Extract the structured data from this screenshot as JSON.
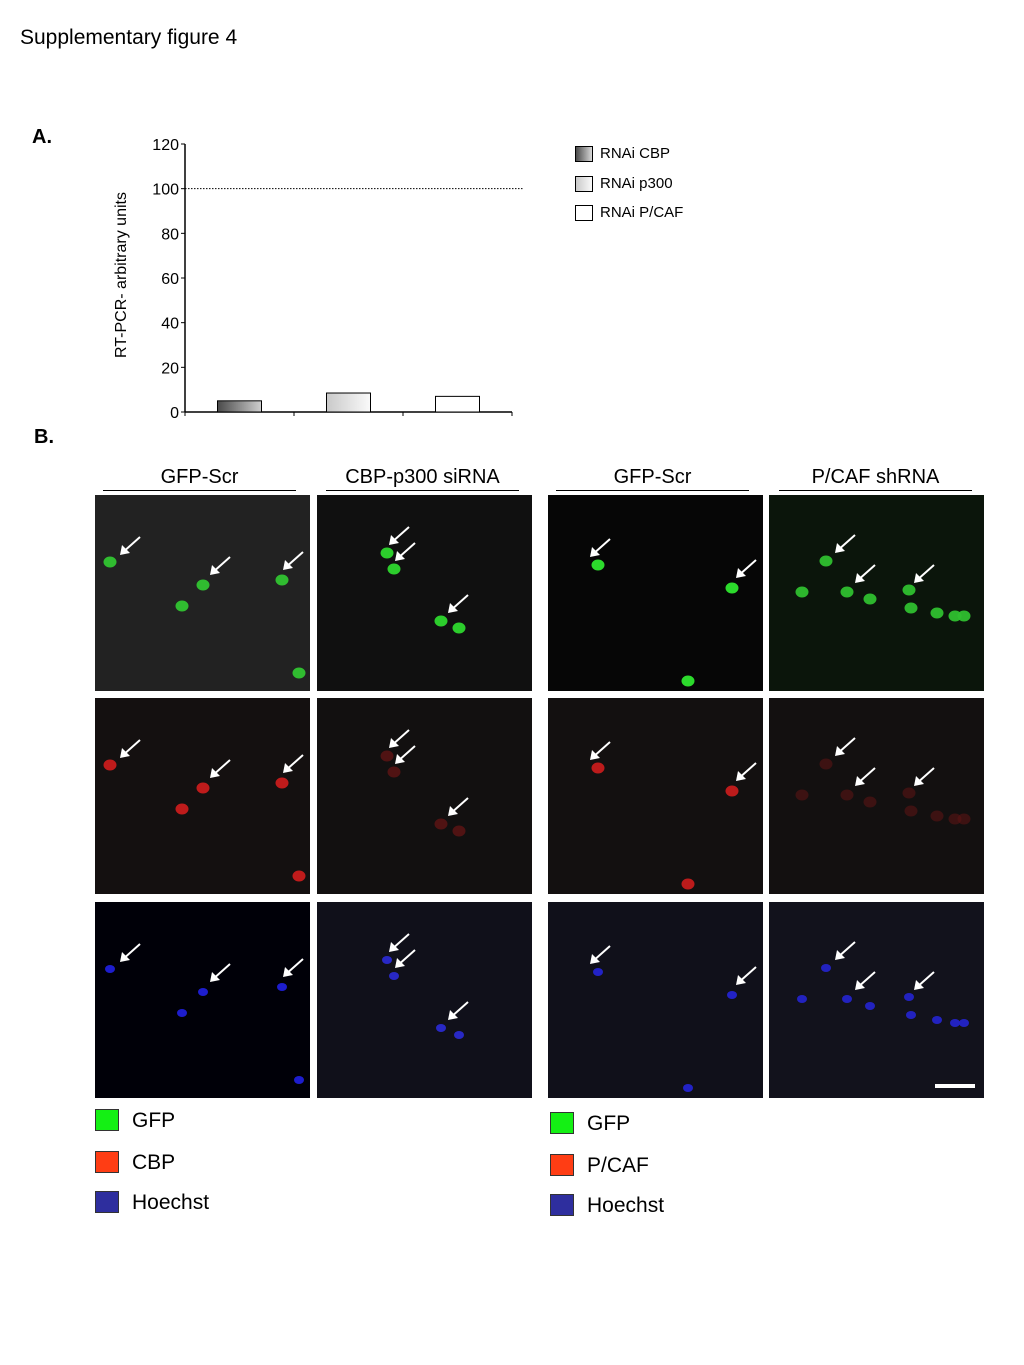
{
  "figure_title": "Supplementary figure 4",
  "panel_a_label": "A.",
  "panel_b_label": "B.",
  "chart_data": {
    "type": "bar",
    "ylabel": "RT-PCR- arbitrary units",
    "xlabel": "",
    "ylim": [
      0,
      120
    ],
    "yticks": [
      0,
      20,
      40,
      60,
      80,
      100,
      120
    ],
    "reference_line": 100,
    "categories": [
      "RNAi CBP",
      "RNAi p300",
      "RNAi P/CAF"
    ],
    "values": [
      5,
      8.5,
      7
    ],
    "fills": [
      "gradient-dark-gray",
      "gradient-light-gray",
      "white"
    ],
    "legend_position": "top-right"
  },
  "column_headers": [
    "GFP-Scr",
    "CBP-p300 siRNA",
    "GFP-Scr",
    "P/CAF shRNA"
  ],
  "channel_colors": {
    "green": "#35ff35",
    "red": "#ff3b1a",
    "blue": "#2e2ea8"
  },
  "legend_left": [
    {
      "label": "GFP",
      "color": "#14f014"
    },
    {
      "label": "CBP",
      "color": "#ff3d14"
    },
    {
      "label": "Hoechst",
      "color": "#2e2e9e"
    }
  ],
  "legend_right": [
    {
      "label": "GFP",
      "color": "#14f014"
    },
    {
      "label": "P/CAF",
      "color": "#ff3d14"
    },
    {
      "label": "Hoechst",
      "color": "#2e2e9e"
    }
  ]
}
